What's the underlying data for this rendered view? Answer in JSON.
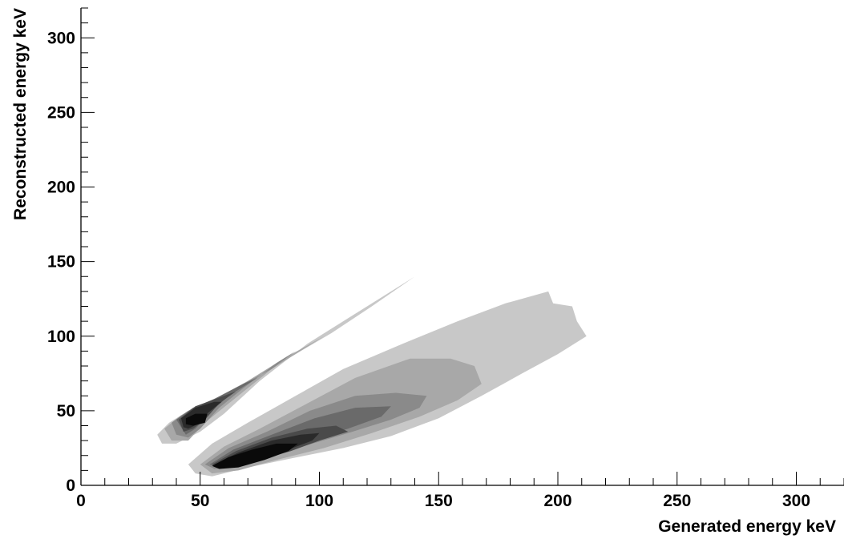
{
  "chart_data": {
    "type": "contour",
    "title": "",
    "xlabel": "Generated energy keV",
    "ylabel": "Reconstructed energy keV",
    "xlim": [
      0,
      320
    ],
    "ylim": [
      0,
      320
    ],
    "x_ticks": [
      0,
      50,
      100,
      150,
      200,
      250,
      300
    ],
    "y_ticks": [
      0,
      50,
      100,
      150,
      200,
      250,
      300
    ],
    "x_tick_labels": [
      "0",
      "50",
      "100",
      "150",
      "200",
      "250",
      "300"
    ],
    "y_tick_labels": [
      "0",
      "50",
      "100",
      "150",
      "200",
      "250",
      "300"
    ],
    "grid": false,
    "legend": "none",
    "level_colors": [
      "#c8c8c8",
      "#a8a8a8",
      "#8a8a8a",
      "#6a6a6a",
      "#4a4a4a",
      "#2a2a2a",
      "#0a0a0a"
    ],
    "regions": [
      {
        "name": "upper-band",
        "levels": [
          [
            [
              32,
              34
            ],
            [
              37,
              42
            ],
            [
              45,
              50
            ],
            [
              55,
              57
            ],
            [
              70,
              70
            ],
            [
              90,
              88
            ],
            [
              105,
              102
            ],
            [
              122,
              120
            ],
            [
              140,
              140
            ],
            [
              128,
              128
            ],
            [
              112,
              112
            ],
            [
              95,
              95
            ],
            [
              75,
              70
            ],
            [
              60,
              48
            ],
            [
              50,
              36
            ],
            [
              40,
              28
            ],
            [
              34,
              28
            ]
          ],
          [
            [
              35,
              38
            ],
            [
              42,
              47
            ],
            [
              52,
              55
            ],
            [
              65,
              65
            ],
            [
              85,
              85
            ],
            [
              102,
              100
            ],
            [
              95,
              93
            ],
            [
              80,
              78
            ],
            [
              62,
              55
            ],
            [
              52,
              42
            ],
            [
              45,
              30
            ],
            [
              38,
              30
            ]
          ],
          [
            [
              38,
              42
            ],
            [
              45,
              50
            ],
            [
              55,
              56
            ],
            [
              68,
              68
            ],
            [
              80,
              78
            ],
            [
              90,
              90
            ],
            [
              82,
              82
            ],
            [
              68,
              65
            ],
            [
              58,
              52
            ],
            [
              50,
              38
            ],
            [
              45,
              32
            ],
            [
              40,
              34
            ]
          ],
          [
            [
              40,
              44
            ],
            [
              47,
              52
            ],
            [
              56,
              58
            ],
            [
              68,
              68
            ],
            [
              74,
              72
            ],
            [
              62,
              60
            ],
            [
              55,
              50
            ],
            [
              48,
              38
            ],
            [
              44,
              34
            ]
          ],
          [
            [
              41,
              44
            ],
            [
              48,
              53
            ],
            [
              60,
              60
            ],
            [
              65,
              63
            ],
            [
              58,
              55
            ],
            [
              52,
              44
            ],
            [
              47,
              38
            ],
            [
              43,
              36
            ]
          ],
          [
            [
              42,
              45
            ],
            [
              48,
              52
            ],
            [
              56,
              56
            ],
            [
              59,
              56
            ],
            [
              52,
              47
            ],
            [
              49,
              41
            ],
            [
              45,
              38
            ],
            [
              43,
              39
            ]
          ],
          [
            [
              44,
              45
            ],
            [
              48,
              48
            ],
            [
              53,
              48
            ],
            [
              52,
              42
            ],
            [
              47,
              40
            ],
            [
              44,
              41
            ]
          ]
        ]
      },
      {
        "name": "lower-band",
        "levels": [
          [
            [
              45,
              14
            ],
            [
              55,
              28
            ],
            [
              70,
              42
            ],
            [
              90,
              60
            ],
            [
              110,
              78
            ],
            [
              135,
              95
            ],
            [
              158,
              110
            ],
            [
              178,
              122
            ],
            [
              196,
              130
            ],
            [
              198,
              122
            ],
            [
              206,
              120
            ],
            [
              208,
              110
            ],
            [
              212,
              100
            ],
            [
              200,
              88
            ],
            [
              185,
              75
            ],
            [
              168,
              60
            ],
            [
              150,
              45
            ],
            [
              130,
              33
            ],
            [
              110,
              25
            ],
            [
              88,
              18
            ],
            [
              70,
              12
            ],
            [
              55,
              6
            ],
            [
              48,
              8
            ]
          ],
          [
            [
              50,
              14
            ],
            [
              60,
              26
            ],
            [
              75,
              38
            ],
            [
              95,
              55
            ],
            [
              115,
              72
            ],
            [
              138,
              85
            ],
            [
              155,
              85
            ],
            [
              165,
              80
            ],
            [
              168,
              68
            ],
            [
              158,
              57
            ],
            [
              142,
              46
            ],
            [
              122,
              35
            ],
            [
              102,
              25
            ],
            [
              82,
              17
            ],
            [
              66,
              10
            ],
            [
              55,
              8
            ]
          ],
          [
            [
              52,
              14
            ],
            [
              62,
              25
            ],
            [
              78,
              36
            ],
            [
              96,
              50
            ],
            [
              115,
              60
            ],
            [
              132,
              62
            ],
            [
              145,
              60
            ],
            [
              142,
              52
            ],
            [
              130,
              44
            ],
            [
              112,
              35
            ],
            [
              95,
              27
            ],
            [
              78,
              18
            ],
            [
              64,
              12
            ],
            [
              56,
              11
            ]
          ],
          [
            [
              54,
              14
            ],
            [
              64,
              24
            ],
            [
              80,
              34
            ],
            [
              98,
              45
            ],
            [
              115,
              52
            ],
            [
              130,
              53
            ],
            [
              126,
              46
            ],
            [
              112,
              38
            ],
            [
              96,
              30
            ],
            [
              80,
              21
            ],
            [
              66,
              14
            ],
            [
              58,
              12
            ]
          ],
          [
            [
              55,
              14
            ],
            [
              65,
              23
            ],
            [
              80,
              32
            ],
            [
              95,
              38
            ],
            [
              107,
              40
            ],
            [
              112,
              36
            ],
            [
              100,
              30
            ],
            [
              88,
              23
            ],
            [
              75,
              17
            ],
            [
              63,
              13
            ],
            [
              57,
              12
            ]
          ],
          [
            [
              56,
              14
            ],
            [
              66,
              22
            ],
            [
              80,
              30
            ],
            [
              92,
              34
            ],
            [
              100,
              35
            ],
            [
              97,
              30
            ],
            [
              87,
              24
            ],
            [
              75,
              18
            ],
            [
              64,
              13
            ],
            [
              58,
              13
            ]
          ],
          [
            [
              55,
              13
            ],
            [
              62,
              19
            ],
            [
              72,
              24
            ],
            [
              82,
              28
            ],
            [
              91,
              28
            ],
            [
              87,
              23
            ],
            [
              77,
              17
            ],
            [
              66,
              12
            ],
            [
              58,
              11
            ]
          ]
        ]
      }
    ]
  }
}
